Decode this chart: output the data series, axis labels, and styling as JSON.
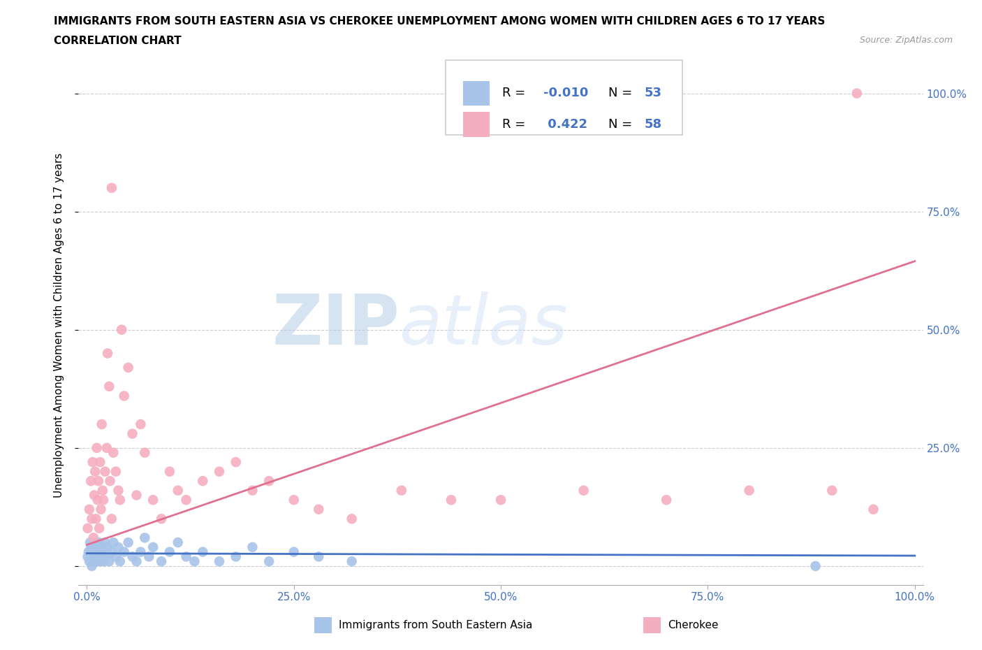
{
  "title_line1": "IMMIGRANTS FROM SOUTH EASTERN ASIA VS CHEROKEE UNEMPLOYMENT AMONG WOMEN WITH CHILDREN AGES 6 TO 17 YEARS",
  "title_line2": "CORRELATION CHART",
  "source": "Source: ZipAtlas.com",
  "ylabel": "Unemployment Among Women with Children Ages 6 to 17 years",
  "blue_color": "#a8c4e8",
  "pink_color": "#f5aec0",
  "blue_line_color": "#4472c4",
  "pink_line_color": "#e07090",
  "watermark_text": "ZIPAtlas",
  "watermark_color_ZIP": "#b8cce8",
  "watermark_color_atlas": "#c8daf0",
  "grid_color": "#cccccc",
  "tick_color": "#4472c4",
  "blue_N": 53,
  "pink_N": 58,
  "blue_R": -0.01,
  "pink_R": 0.422,
  "blue_x": [
    0.001,
    0.002,
    0.003,
    0.004,
    0.005,
    0.005,
    0.006,
    0.007,
    0.008,
    0.009,
    0.01,
    0.011,
    0.012,
    0.013,
    0.014,
    0.015,
    0.016,
    0.017,
    0.018,
    0.019,
    0.02,
    0.021,
    0.022,
    0.023,
    0.025,
    0.027,
    0.03,
    0.032,
    0.035,
    0.038,
    0.04,
    0.045,
    0.05,
    0.055,
    0.06,
    0.065,
    0.07,
    0.075,
    0.08,
    0.09,
    0.1,
    0.11,
    0.12,
    0.13,
    0.14,
    0.16,
    0.18,
    0.2,
    0.22,
    0.25,
    0.28,
    0.32,
    0.88
  ],
  "blue_y": [
    0.02,
    0.03,
    0.01,
    0.05,
    0.02,
    0.04,
    0.0,
    0.03,
    0.02,
    0.01,
    0.03,
    0.02,
    0.04,
    0.01,
    0.05,
    0.02,
    0.03,
    0.01,
    0.04,
    0.02,
    0.03,
    0.01,
    0.05,
    0.02,
    0.04,
    0.01,
    0.03,
    0.05,
    0.02,
    0.04,
    0.01,
    0.03,
    0.05,
    0.02,
    0.01,
    0.03,
    0.06,
    0.02,
    0.04,
    0.01,
    0.03,
    0.05,
    0.02,
    0.01,
    0.03,
    0.01,
    0.02,
    0.04,
    0.01,
    0.03,
    0.02,
    0.01,
    0.0
  ],
  "pink_x": [
    0.001,
    0.003,
    0.005,
    0.006,
    0.007,
    0.008,
    0.009,
    0.01,
    0.011,
    0.012,
    0.013,
    0.014,
    0.015,
    0.016,
    0.017,
    0.018,
    0.019,
    0.02,
    0.022,
    0.024,
    0.025,
    0.027,
    0.028,
    0.03,
    0.032,
    0.035,
    0.038,
    0.04,
    0.042,
    0.045,
    0.05,
    0.055,
    0.06,
    0.065,
    0.07,
    0.08,
    0.09,
    0.1,
    0.11,
    0.12,
    0.14,
    0.16,
    0.18,
    0.2,
    0.22,
    0.25,
    0.28,
    0.32,
    0.38,
    0.44,
    0.5,
    0.6,
    0.7,
    0.8,
    0.9,
    0.95,
    0.03,
    0.93
  ],
  "pink_y": [
    0.08,
    0.12,
    0.18,
    0.1,
    0.22,
    0.06,
    0.15,
    0.2,
    0.1,
    0.25,
    0.14,
    0.18,
    0.08,
    0.22,
    0.12,
    0.3,
    0.16,
    0.14,
    0.2,
    0.25,
    0.45,
    0.38,
    0.18,
    0.1,
    0.24,
    0.2,
    0.16,
    0.14,
    0.5,
    0.36,
    0.42,
    0.28,
    0.15,
    0.3,
    0.24,
    0.14,
    0.1,
    0.2,
    0.16,
    0.14,
    0.18,
    0.2,
    0.22,
    0.16,
    0.18,
    0.14,
    0.12,
    0.1,
    0.16,
    0.14,
    0.14,
    0.16,
    0.14,
    0.16,
    0.16,
    0.12,
    0.8,
    1.0
  ],
  "xlim": [
    0.0,
    1.0
  ],
  "ylim": [
    0.0,
    1.05
  ],
  "xticks": [
    0.0,
    0.25,
    0.5,
    0.75,
    1.0
  ],
  "xtick_labels": [
    "0.0%",
    "25.0%",
    "50.0%",
    "75.0%",
    "100.0%"
  ],
  "ytick_right": [
    0.25,
    0.5,
    0.75,
    1.0
  ],
  "ytick_right_labels": [
    "25.0%",
    "50.0%",
    "75.0%",
    "100.0%"
  ]
}
